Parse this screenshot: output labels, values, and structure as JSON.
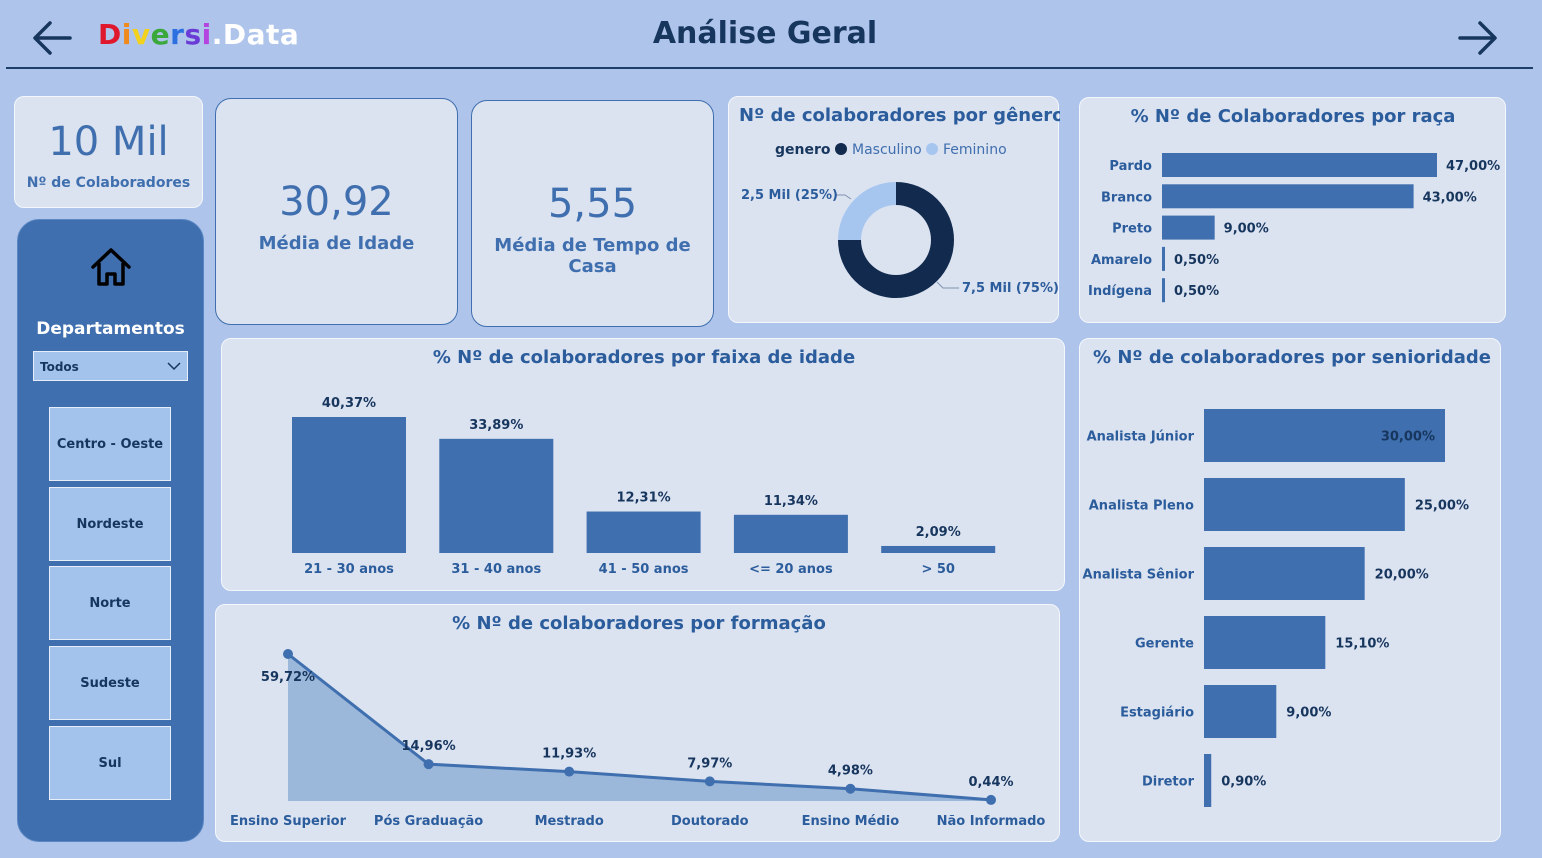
{
  "header": {
    "logo_letters": [
      {
        "ch": "D",
        "color": "#e0182d"
      },
      {
        "ch": "i",
        "color": "#f08a1c"
      },
      {
        "ch": "v",
        "color": "#f2d21c"
      },
      {
        "ch": "e",
        "color": "#3aa83a"
      },
      {
        "ch": "r",
        "color": "#2b6fe0"
      },
      {
        "ch": "s",
        "color": "#6a3bd6"
      },
      {
        "ch": "i",
        "color": "#b444e0"
      },
      {
        "ch": ".Data",
        "color": "#ffffff"
      }
    ],
    "title": "Análise Geral",
    "back_icon": "arrow-left-icon",
    "next_icon": "arrow-right-icon"
  },
  "kpis": {
    "colaboradores": {
      "value": "10 Mil",
      "label": "Nº de Colaboradores"
    },
    "idade": {
      "value": "30,92",
      "label": "Média de Idade"
    },
    "tempo_casa": {
      "value": "5,55",
      "label": "Média de Tempo de Casa"
    }
  },
  "sidebar": {
    "home_icon": "home-icon",
    "title": "Departamentos",
    "dropdown_value": "Todos",
    "buttons": [
      "Centro - Oeste",
      "Nordeste",
      "Norte",
      "Sudeste",
      "Sul"
    ]
  },
  "colors": {
    "bar": "#3f6fae",
    "dark": "#112a4d",
    "light": "#a7c6ef",
    "area": "#9bb7d9"
  },
  "charts": {
    "genero": {
      "title": "Nº de colaboradores por gênero",
      "legend_title": "genero",
      "chart_data": {
        "type": "pie",
        "categories": [
          "Masculino",
          "Feminino"
        ],
        "values": [
          7.5,
          2.5
        ],
        "data_labels": [
          "7,5 Mil (75%)",
          "2,5 Mil (25%)"
        ],
        "colors": [
          "#112a4d",
          "#a7c6ef"
        ]
      }
    },
    "raca": {
      "title": "% Nº de Colaboradores por raça",
      "chart_data": {
        "type": "bar",
        "orientation": "horizontal",
        "categories": [
          "Pardo",
          "Branco",
          "Preto",
          "Amarelo",
          "Indígena"
        ],
        "values": [
          47.0,
          43.0,
          9.0,
          0.5,
          0.5
        ],
        "data_labels": [
          "47,00%",
          "43,00%",
          "9,00%",
          "0,50%",
          "0,50%"
        ]
      }
    },
    "idade": {
      "title": "% Nº de colaboradores por faixa de idade",
      "chart_data": {
        "type": "bar",
        "categories": [
          "21 - 30 anos",
          "31 - 40 anos",
          "41 - 50 anos",
          "<= 20 anos",
          "> 50"
        ],
        "values": [
          40.37,
          33.89,
          12.31,
          11.34,
          2.09
        ],
        "data_labels": [
          "40,37%",
          "33,89%",
          "12,31%",
          "11,34%",
          "2,09%"
        ]
      }
    },
    "senioridade": {
      "title": "% Nº de colaboradores por senioridade",
      "chart_data": {
        "type": "bar",
        "orientation": "horizontal",
        "categories": [
          "Analista Júnior",
          "Analista Pleno",
          "Analista Sênior",
          "Gerente",
          "Estagiário",
          "Diretor"
        ],
        "values": [
          30.0,
          25.0,
          20.0,
          15.1,
          9.0,
          0.9
        ],
        "data_labels": [
          "30,00%",
          "25,00%",
          "20,00%",
          "15,10%",
          "9,00%",
          "0,90%"
        ]
      }
    },
    "formacao": {
      "title": "% Nº de colaboradores por formação",
      "chart_data": {
        "type": "area",
        "categories": [
          "Ensino Superior",
          "Pós Graduação",
          "Mestrado",
          "Doutorado",
          "Ensino Médio",
          "Não Informado"
        ],
        "values": [
          59.72,
          14.96,
          11.93,
          7.97,
          4.98,
          0.44
        ],
        "data_labels": [
          "59,72%",
          "14,96%",
          "11,93%",
          "7,97%",
          "4,98%",
          "0,44%"
        ]
      }
    }
  }
}
